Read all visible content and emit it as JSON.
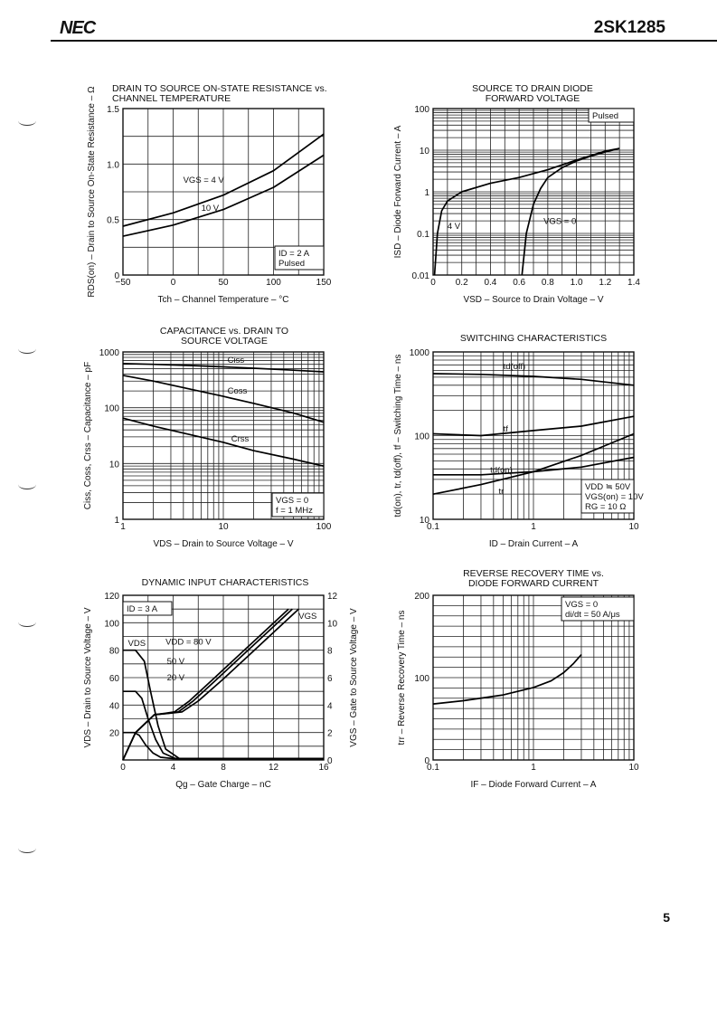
{
  "header": {
    "brand": "NEC",
    "part_number": "2SK1285"
  },
  "footer": {
    "page_number": "5"
  },
  "icons": [
    "binder-hole-mark",
    "binder-hole-mark",
    "binder-hole-mark",
    "binder-hole-mark",
    "binder-hole-mark"
  ],
  "chart_data": [
    {
      "id": "rds_vs_tch",
      "type": "line",
      "title": [
        "DRAIN TO SOURCE ON-STATE RESISTANCE vs.",
        "CHANNEL TEMPERATURE"
      ],
      "xlabel": "Tch – Channel Temperature – °C",
      "ylabel": "RDS(on) – Drain to Source On-State Resistance – Ω",
      "xscale": "linear",
      "yscale": "linear",
      "xlim": [
        -50,
        150
      ],
      "ylim": [
        0,
        1.5
      ],
      "xticks": [
        -50,
        0,
        50,
        100,
        150
      ],
      "yticks": [
        0,
        0.5,
        1.0,
        1.5
      ],
      "xtick_labels": [
        "−50",
        "0",
        "50",
        "100",
        "150"
      ],
      "ytick_labels": [
        "0",
        "0.5",
        "1.0",
        "1.5"
      ],
      "grid": true,
      "series": [
        {
          "name": "VGS = 4 V",
          "x": [
            -50,
            0,
            50,
            100,
            150
          ],
          "y": [
            0.44,
            0.56,
            0.72,
            0.94,
            1.27
          ]
        },
        {
          "name": "10 V",
          "x": [
            -50,
            0,
            50,
            100,
            150
          ],
          "y": [
            0.35,
            0.45,
            0.59,
            0.79,
            1.08
          ]
        }
      ],
      "annotations": [
        {
          "text": "VGS = 4 V",
          "x": 10,
          "y": 0.83
        },
        {
          "text": "10 V",
          "x": 28,
          "y": 0.58
        }
      ],
      "notes": [
        "ID = 2 A",
        "Pulsed"
      ]
    },
    {
      "id": "isd_vs_vsd",
      "type": "line",
      "title": [
        "SOURCE TO DRAIN DIODE",
        "FORWARD VOLTAGE"
      ],
      "xlabel": "VSD – Source to Drain Voltage – V",
      "ylabel": "ISD – Diode Forward Current – A",
      "xscale": "linear",
      "yscale": "log",
      "xlim": [
        0,
        1.4
      ],
      "ylim": [
        0.01,
        100
      ],
      "xticks": [
        0,
        0.2,
        0.4,
        0.6,
        0.8,
        1.0,
        1.2,
        1.4
      ],
      "yticks": [
        0.01,
        0.1,
        1,
        10,
        100
      ],
      "xtick_labels": [
        "0",
        "0.2",
        "0.4",
        "0.6",
        "0.8",
        "1.0",
        "1.2",
        "1.4"
      ],
      "ytick_labels": [
        "0.01",
        "0.1",
        "1",
        "10",
        "100"
      ],
      "grid": true,
      "series": [
        {
          "name": "4 V",
          "x": [
            0.01,
            0.03,
            0.06,
            0.1,
            0.2,
            0.4,
            0.6,
            0.8,
            1.0,
            1.2,
            1.3
          ],
          "y": [
            0.01,
            0.1,
            0.35,
            0.6,
            1.0,
            1.6,
            2.2,
            3.4,
            5.8,
            9.5,
            11
          ]
        },
        {
          "name": "VGS = 0",
          "x": [
            0.62,
            0.65,
            0.7,
            0.75,
            0.8,
            0.9,
            1.0,
            1.1,
            1.2,
            1.3
          ],
          "y": [
            0.01,
            0.1,
            0.5,
            1.2,
            2.2,
            3.8,
            5.5,
            7.2,
            9.0,
            11
          ]
        }
      ],
      "annotations": [
        {
          "text": "4 V",
          "x": 0.1,
          "y": 0.13
        },
        {
          "text": "VGS = 0",
          "x": 0.77,
          "y": 0.17
        }
      ],
      "notes": [
        "Pulsed"
      ]
    },
    {
      "id": "cap_vs_vds",
      "type": "line",
      "title": [
        "CAPACITANCE vs. DRAIN TO",
        "SOURCE VOLTAGE"
      ],
      "xlabel": "VDS – Drain to Source Voltage – V",
      "ylabel": "Ciss, Coss, Crss – Capacitance – pF",
      "xscale": "log",
      "yscale": "log",
      "xlim": [
        1,
        100
      ],
      "ylim": [
        1,
        1000
      ],
      "xticks": [
        1,
        10,
        100
      ],
      "yticks": [
        1,
        10,
        100,
        1000
      ],
      "xtick_labels": [
        "1",
        "10",
        "100"
      ],
      "ytick_labels": [
        "1",
        "10",
        "100",
        "1000"
      ],
      "grid": true,
      "series": [
        {
          "name": "Ciss",
          "x": [
            1,
            2,
            5,
            10,
            20,
            50,
            100
          ],
          "y": [
            620,
            600,
            570,
            540,
            510,
            470,
            440
          ]
        },
        {
          "name": "Coss",
          "x": [
            1,
            2,
            5,
            10,
            20,
            50,
            100
          ],
          "y": [
            380,
            300,
            210,
            160,
            120,
            80,
            55
          ]
        },
        {
          "name": "Crss",
          "x": [
            1,
            2,
            5,
            10,
            20,
            50,
            100
          ],
          "y": [
            65,
            47,
            32,
            24,
            17,
            12,
            9
          ]
        }
      ],
      "annotations": [
        {
          "text": "Ciss",
          "x": 11,
          "y": 640
        },
        {
          "text": "Coss",
          "x": 11,
          "y": 180
        },
        {
          "text": "Crss",
          "x": 12,
          "y": 25
        }
      ],
      "notes": [
        "VGS = 0",
        "f = 1 MHz"
      ]
    },
    {
      "id": "switching",
      "type": "line",
      "title": [
        "SWITCHING CHARACTERISTICS"
      ],
      "xlabel": "ID – Drain Current – A",
      "ylabel": "td(on), tr, td(off), tf – Switching Time – ns",
      "xscale": "log",
      "yscale": "log",
      "xlim": [
        0.1,
        10
      ],
      "ylim": [
        10,
        1000
      ],
      "xticks": [
        0.1,
        1,
        10
      ],
      "yticks": [
        10,
        100,
        1000
      ],
      "xtick_labels": [
        "0.1",
        "1",
        "10"
      ],
      "ytick_labels": [
        "10",
        "100",
        "1000"
      ],
      "grid": true,
      "series": [
        {
          "name": "td(off)",
          "x": [
            0.1,
            0.3,
            1,
            3,
            10
          ],
          "y": [
            550,
            540,
            510,
            470,
            400
          ]
        },
        {
          "name": "tf",
          "x": [
            0.1,
            0.3,
            1,
            3,
            10
          ],
          "y": [
            105,
            100,
            115,
            130,
            170
          ]
        },
        {
          "name": "td(on)",
          "x": [
            0.1,
            0.3,
            1,
            3,
            10
          ],
          "y": [
            34,
            34,
            37,
            42,
            55
          ]
        },
        {
          "name": "tr",
          "x": [
            0.1,
            0.3,
            1,
            3,
            10
          ],
          "y": [
            20,
            26,
            37,
            58,
            105
          ]
        }
      ],
      "annotations": [
        {
          "text": "td(off)",
          "x": 0.5,
          "y": 620
        },
        {
          "text": "tf",
          "x": 0.5,
          "y": 112
        },
        {
          "text": "td(on)",
          "x": 0.37,
          "y": 36
        },
        {
          "text": "tr",
          "x": 0.45,
          "y": 20
        }
      ],
      "notes": [
        "VDD ≒ 50V",
        "VGS(on) = 10V",
        "RG = 10 Ω"
      ]
    },
    {
      "id": "dynamic_input",
      "type": "line",
      "title": [
        "DYNAMIC INPUT CHARACTERISTICS"
      ],
      "xlabel": "Qg – Gate Charge – nC",
      "ylabel": "VDS – Drain to Source Voltage – V",
      "ylabel2": "VGS – Gate to Source Voltage – V",
      "xscale": "linear",
      "yscale": "linear",
      "xlim": [
        0,
        16
      ],
      "ylim": [
        0,
        120
      ],
      "ylim2": [
        0,
        12
      ],
      "xticks": [
        0,
        4,
        8,
        12,
        16
      ],
      "yticks": [
        0,
        20,
        40,
        60,
        80,
        100,
        120
      ],
      "yticks2": [
        0,
        2,
        4,
        6,
        8,
        10,
        12
      ],
      "xtick_labels": [
        "0",
        "4",
        "8",
        "12",
        "16"
      ],
      "ytick_labels": [
        "",
        "20",
        "40",
        "60",
        "80",
        "100",
        "120"
      ],
      "ytick_labels2": [
        "0",
        "2",
        "4",
        "6",
        "8",
        "10",
        "12"
      ],
      "grid": true,
      "series": [
        {
          "name": "VDS (VDD = 80 V)",
          "axis": "left",
          "x": [
            0,
            1.0,
            1.7,
            2.2,
            2.8,
            3.4,
            4.5,
            16
          ],
          "y": [
            80,
            80,
            72,
            50,
            25,
            8,
            1,
            1
          ]
        },
        {
          "name": "VDS (50 V)",
          "axis": "left",
          "x": [
            0,
            1.0,
            1.5,
            2.0,
            2.6,
            3.2,
            4.2,
            16
          ],
          "y": [
            50,
            50,
            45,
            30,
            15,
            5,
            1,
            1
          ]
        },
        {
          "name": "VDS (20 V)",
          "axis": "left",
          "x": [
            0,
            0.9,
            1.3,
            1.8,
            2.4,
            3.0,
            4.0,
            16
          ],
          "y": [
            20,
            20,
            18,
            11,
            5,
            2,
            1,
            1
          ]
        },
        {
          "name": "VGS (VDD = 80 V)",
          "axis": "right",
          "x": [
            0,
            1.0,
            2.5,
            3.7,
            4.7,
            6.0,
            8.0,
            10.0,
            12.0,
            14.0
          ],
          "y": [
            0,
            2,
            3.3,
            3.4,
            3.5,
            4.3,
            5.9,
            7.6,
            9.3,
            11.0
          ]
        },
        {
          "name": "VGS (50 V)",
          "axis": "right",
          "x": [
            0,
            1.0,
            2.5,
            3.6,
            4.4,
            5.6,
            7.5,
            9.5,
            11.5,
            13.5
          ],
          "y": [
            0,
            2,
            3.3,
            3.4,
            3.5,
            4.3,
            5.9,
            7.6,
            9.3,
            11.0
          ]
        },
        {
          "name": "VGS (20 V)",
          "axis": "right",
          "x": [
            0,
            1.0,
            2.5,
            3.4,
            4.1,
            5.3,
            7.2,
            9.2,
            11.2,
            13.2
          ],
          "y": [
            0,
            2,
            3.3,
            3.4,
            3.5,
            4.3,
            5.9,
            7.6,
            9.3,
            11.0
          ]
        }
      ],
      "annotations": [
        {
          "text": "VDS",
          "x": 0.4,
          "y": 83
        },
        {
          "text": "VDD = 80 V",
          "x": 3.4,
          "y": 84
        },
        {
          "text": "50 V",
          "x": 3.5,
          "y": 70
        },
        {
          "text": "20 V",
          "x": 3.5,
          "y": 58
        },
        {
          "text": "VGS",
          "x": 14,
          "y": 103
        }
      ],
      "notes": [
        "ID = 3 A"
      ]
    },
    {
      "id": "trr_vs_if",
      "type": "line",
      "title": [
        "REVERSE RECOVERY TIME vs.",
        "DIODE FORWARD CURRENT"
      ],
      "xlabel": "IF – Diode Forward Current – A",
      "ylabel": "trr – Reverse Recovery Time – ns",
      "xscale": "log",
      "yscale": "linear",
      "xlim": [
        0.1,
        10
      ],
      "ylim": [
        0,
        200
      ],
      "xticks": [
        0.1,
        1,
        10
      ],
      "yticks": [
        0,
        100,
        200
      ],
      "xtick_labels": [
        "0.1",
        "1",
        "10"
      ],
      "ytick_labels": [
        "0",
        "100",
        "200"
      ],
      "grid": true,
      "series": [
        {
          "name": "trr",
          "x": [
            0.1,
            0.2,
            0.5,
            1,
            1.5,
            2,
            2.5,
            3
          ],
          "y": [
            68,
            72,
            79,
            88,
            96,
            106,
            117,
            128
          ]
        }
      ],
      "notes": [
        "VGS = 0",
        "di/dt = 50 A/μs"
      ]
    }
  ]
}
